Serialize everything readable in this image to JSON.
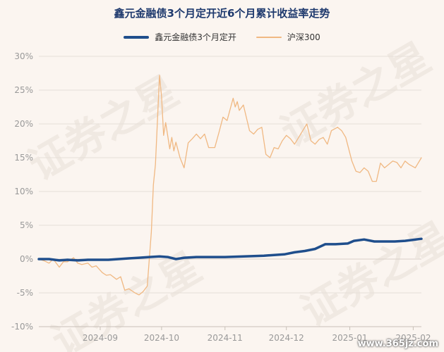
{
  "chart_data": {
    "type": "line",
    "title": "鑫元金融债3个月定开近6个月累计收益率走势",
    "xlabel": "",
    "ylabel": "",
    "ylim": [
      -10,
      30
    ],
    "y_ticks": [
      "30%",
      "25%",
      "20%",
      "15%",
      "10%",
      "5%",
      "0%",
      "-5%",
      "-10%"
    ],
    "y_tick_values": [
      30,
      25,
      20,
      15,
      10,
      5,
      0,
      -5,
      -10
    ],
    "x_ticks": [
      "2024-09",
      "2024-10",
      "2024-11",
      "2024-12",
      "2025-01",
      "2025-02"
    ],
    "x_tick_dates": [
      "2024-09-01",
      "2024-10-01",
      "2024-11-01",
      "2024-12-01",
      "2025-01-01",
      "2025-02-01"
    ],
    "x_range": [
      "2024-08-02",
      "2025-02-05"
    ],
    "grid": true,
    "legend_position": "top-center",
    "series": [
      {
        "name": "鑫元金融债3个月定开",
        "color": "#1f4e8c",
        "points": [
          [
            "2024-08-02",
            0.0
          ],
          [
            "2024-08-07",
            0.0
          ],
          [
            "2024-08-12",
            -0.2
          ],
          [
            "2024-08-16",
            -0.1
          ],
          [
            "2024-08-21",
            -0.2
          ],
          [
            "2024-08-26",
            -0.1
          ],
          [
            "2024-08-31",
            -0.1
          ],
          [
            "2024-09-05",
            -0.1
          ],
          [
            "2024-09-10",
            0.0
          ],
          [
            "2024-09-15",
            0.1
          ],
          [
            "2024-09-20",
            0.2
          ],
          [
            "2024-09-25",
            0.3
          ],
          [
            "2024-09-30",
            0.4
          ],
          [
            "2024-10-04",
            0.3
          ],
          [
            "2024-10-08",
            0.0
          ],
          [
            "2024-10-12",
            0.2
          ],
          [
            "2024-10-18",
            0.3
          ],
          [
            "2024-10-25",
            0.3
          ],
          [
            "2024-11-01",
            0.3
          ],
          [
            "2024-11-10",
            0.4
          ],
          [
            "2024-11-20",
            0.5
          ],
          [
            "2024-11-30",
            0.7
          ],
          [
            "2024-12-05",
            1.0
          ],
          [
            "2024-12-10",
            1.2
          ],
          [
            "2024-12-15",
            1.5
          ],
          [
            "2024-12-20",
            2.2
          ],
          [
            "2024-12-25",
            2.2
          ],
          [
            "2024-12-31",
            2.3
          ],
          [
            "2025-01-03",
            2.7
          ],
          [
            "2025-01-08",
            2.9
          ],
          [
            "2025-01-13",
            2.6
          ],
          [
            "2025-01-18",
            2.6
          ],
          [
            "2025-01-23",
            2.6
          ],
          [
            "2025-01-28",
            2.7
          ],
          [
            "2025-02-05",
            3.0
          ]
        ]
      },
      {
        "name": "沪深300",
        "color": "#f0b882",
        "points": [
          [
            "2024-08-02",
            0.0
          ],
          [
            "2024-08-05",
            -0.3
          ],
          [
            "2024-08-07",
            -0.6
          ],
          [
            "2024-08-09",
            0.0
          ],
          [
            "2024-08-12",
            -1.2
          ],
          [
            "2024-08-14",
            -0.4
          ],
          [
            "2024-08-16",
            -0.4
          ],
          [
            "2024-08-19",
            0.2
          ],
          [
            "2024-08-21",
            -0.6
          ],
          [
            "2024-08-23",
            -0.8
          ],
          [
            "2024-08-26",
            -0.6
          ],
          [
            "2024-08-28",
            -1.2
          ],
          [
            "2024-08-30",
            -1.0
          ],
          [
            "2024-09-02",
            -2.0
          ],
          [
            "2024-09-04",
            -2.4
          ],
          [
            "2024-09-06",
            -2.3
          ],
          [
            "2024-09-09",
            -3.0
          ],
          [
            "2024-09-11",
            -2.6
          ],
          [
            "2024-09-13",
            -4.6
          ],
          [
            "2024-09-15",
            -4.4
          ],
          [
            "2024-09-18",
            -5.0
          ],
          [
            "2024-09-20",
            -5.3
          ],
          [
            "2024-09-22",
            -4.8
          ],
          [
            "2024-09-24",
            -4.0
          ],
          [
            "2024-09-25",
            0.0
          ],
          [
            "2024-09-26",
            4.0
          ],
          [
            "2024-09-27",
            11.0
          ],
          [
            "2024-09-28",
            14.0
          ],
          [
            "2024-09-30",
            27.2
          ],
          [
            "2024-10-01",
            24.0
          ],
          [
            "2024-10-02",
            18.3
          ],
          [
            "2024-10-03",
            20.2
          ],
          [
            "2024-10-05",
            16.3
          ],
          [
            "2024-10-06",
            18.0
          ],
          [
            "2024-10-07",
            16.0
          ],
          [
            "2024-10-08",
            17.3
          ],
          [
            "2024-10-10",
            15.0
          ],
          [
            "2024-10-12",
            13.5
          ],
          [
            "2024-10-14",
            17.2
          ],
          [
            "2024-10-16",
            17.8
          ],
          [
            "2024-10-18",
            18.5
          ],
          [
            "2024-10-20",
            17.8
          ],
          [
            "2024-10-22",
            18.5
          ],
          [
            "2024-10-24",
            16.5
          ],
          [
            "2024-10-27",
            16.5
          ],
          [
            "2024-10-29",
            18.7
          ],
          [
            "2024-10-31",
            21.0
          ],
          [
            "2024-11-02",
            20.5
          ],
          [
            "2024-11-05",
            23.8
          ],
          [
            "2024-11-06",
            22.5
          ],
          [
            "2024-11-07",
            23.3
          ],
          [
            "2024-11-08",
            22.0
          ],
          [
            "2024-11-10",
            22.8
          ],
          [
            "2024-11-13",
            19.0
          ],
          [
            "2024-11-15",
            18.5
          ],
          [
            "2024-11-17",
            19.2
          ],
          [
            "2024-11-19",
            19.5
          ],
          [
            "2024-11-21",
            15.5
          ],
          [
            "2024-11-23",
            15.0
          ],
          [
            "2024-11-25",
            16.5
          ],
          [
            "2024-11-27",
            16.3
          ],
          [
            "2024-11-29",
            17.5
          ],
          [
            "2024-12-01",
            18.3
          ],
          [
            "2024-12-03",
            17.8
          ],
          [
            "2024-12-05",
            17.0
          ],
          [
            "2024-12-07",
            18.0
          ],
          [
            "2024-12-09",
            19.0
          ],
          [
            "2024-12-11",
            20.0
          ],
          [
            "2024-12-13",
            17.5
          ],
          [
            "2024-12-15",
            17.0
          ],
          [
            "2024-12-17",
            17.7
          ],
          [
            "2024-12-19",
            18.0
          ],
          [
            "2024-12-21",
            17.0
          ],
          [
            "2024-12-23",
            19.0
          ],
          [
            "2024-12-26",
            19.5
          ],
          [
            "2024-12-28",
            19.0
          ],
          [
            "2024-12-30",
            18.0
          ],
          [
            "2025-01-02",
            14.5
          ],
          [
            "2025-01-04",
            13.0
          ],
          [
            "2025-01-06",
            12.8
          ],
          [
            "2025-01-08",
            13.5
          ],
          [
            "2025-01-10",
            13.0
          ],
          [
            "2025-01-12",
            11.5
          ],
          [
            "2025-01-14",
            11.5
          ],
          [
            "2025-01-16",
            14.2
          ],
          [
            "2025-01-18",
            13.5
          ],
          [
            "2025-01-20",
            14.0
          ],
          [
            "2025-01-22",
            14.5
          ],
          [
            "2025-01-24",
            14.3
          ],
          [
            "2025-01-26",
            13.5
          ],
          [
            "2025-01-28",
            14.5
          ],
          [
            "2025-01-30",
            14.0
          ],
          [
            "2025-02-02",
            13.5
          ],
          [
            "2025-02-05",
            15.0
          ]
        ]
      }
    ]
  },
  "legend": {
    "series1_label": "鑫元金融债3个月定开",
    "series2_label": "沪深300"
  },
  "watermark": {
    "text": "证券之星",
    "site": "www.365jz.com"
  }
}
